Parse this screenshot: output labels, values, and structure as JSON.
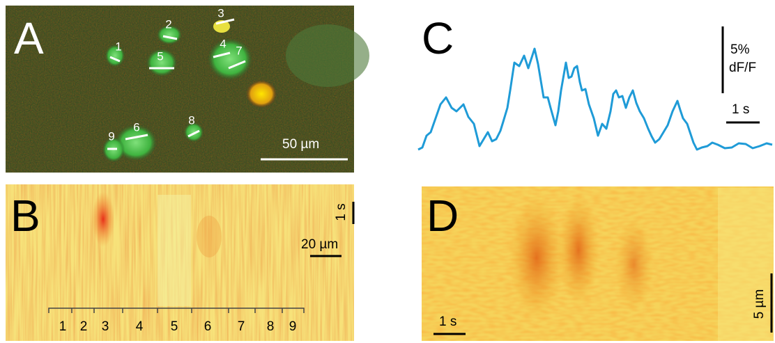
{
  "panel_a": {
    "label": "A",
    "cell_labels": [
      "1",
      "2",
      "3",
      "4",
      "5",
      "6",
      "7",
      "8",
      "9"
    ],
    "scale_bar": "50 µm"
  },
  "panel_b": {
    "label": "B",
    "time_bar": "1 s",
    "space_bar": "20 µm",
    "segments": [
      "1",
      "2",
      "3",
      "4",
      "5",
      "6",
      "7",
      "8",
      "9"
    ]
  },
  "panel_c": {
    "label": "C",
    "amplitude_bar": [
      "5%",
      "dF/F"
    ],
    "time_bar": "1 s"
  },
  "panel_d": {
    "label": "D",
    "time_bar": "1 s",
    "space_bar": "5 µm"
  }
}
